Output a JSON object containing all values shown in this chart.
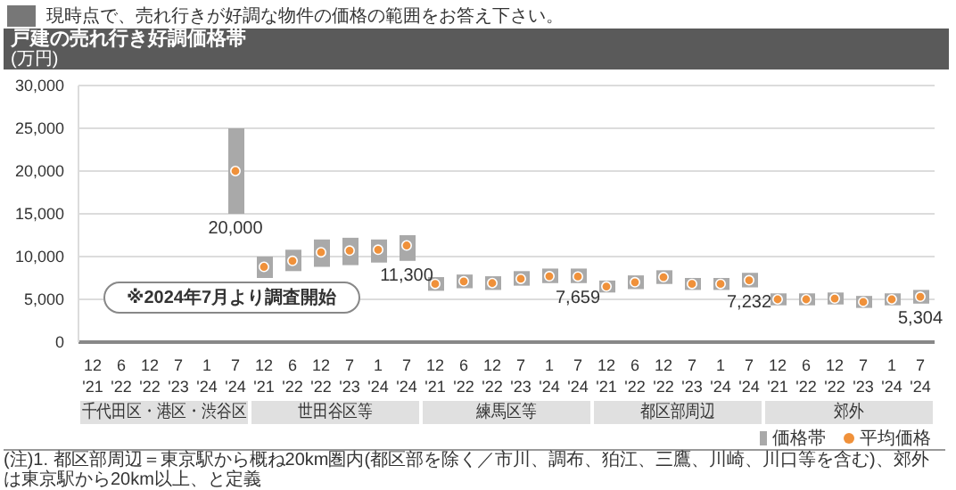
{
  "chart_data": {
    "type": "bar",
    "title": "戸建の売れ行き好調価格帯",
    "subtitle": "現時点で、売れ行きが好調な物件の価格の範囲をお答え下さい。",
    "ylabel": "(万円)",
    "categories": [
      "12 '21",
      "6 '22",
      "12 '22",
      "7 '23",
      "1 '24",
      "7 '24",
      "12 '21",
      "6 '22",
      "12 '22",
      "7 '23",
      "1 '24",
      "7 '24",
      "12 '21",
      "6 '22",
      "12 '22",
      "7 '23",
      "1 '24",
      "7 '24",
      "12 '21",
      "6 '22",
      "12 '22",
      "7 '23",
      "1 '24",
      "7 '24",
      "12 '21",
      "6 '22",
      "12 '22",
      "7 '23",
      "1 '24",
      "7 '24"
    ],
    "series": [
      {
        "name": "価格帯",
        "color": "#a9a9a9",
        "base": [
          null,
          null,
          null,
          null,
          null,
          15000,
          7500,
          8300,
          8800,
          9000,
          9300,
          9500,
          6000,
          6300,
          6100,
          6600,
          6900,
          6900,
          5800,
          6200,
          6800,
          6100,
          6100,
          6400,
          4300,
          4300,
          4400,
          4000,
          4300,
          4500
        ],
        "values": [
          null,
          null,
          null,
          null,
          null,
          10000,
          2500,
          2500,
          3200,
          3200,
          2700,
          3000,
          1600,
          1600,
          1600,
          1700,
          1700,
          1700,
          1400,
          1600,
          1600,
          1400,
          1400,
          1700,
          1400,
          1400,
          1400,
          1400,
          1400,
          1600
        ]
      },
      {
        "name": "平均価格",
        "type": "scatter",
        "color": "#f0913a",
        "values": [
          null,
          null,
          null,
          null,
          null,
          20000,
          8800,
          9500,
          10500,
          10700,
          10800,
          11300,
          6800,
          7100,
          6900,
          7400,
          7700,
          7659,
          6500,
          7000,
          7600,
          6800,
          6800,
          7232,
          5000,
          5000,
          5100,
          4700,
          5000,
          5304
        ],
        "value_labels": [
          null,
          null,
          null,
          null,
          null,
          "20,000",
          null,
          null,
          null,
          null,
          null,
          "11,300",
          null,
          null,
          null,
          null,
          null,
          "7,659",
          null,
          null,
          null,
          null,
          null,
          "7,232",
          null,
          null,
          null,
          null,
          null,
          "5,304"
        ]
      }
    ],
    "ylim": [
      0,
      30000
    ],
    "yticks": [
      0,
      {
        "value": 5000,
        "label": "5,000"
      },
      {
        "value": 10000,
        "label": "10,000"
      },
      {
        "value": 15000,
        "label": "15,000"
      },
      {
        "value": 20000,
        "label": "20,000"
      },
      {
        "value": 25000,
        "label": "25,000"
      },
      {
        "value": 30000,
        "label": "30,000"
      }
    ],
    "grid": "y",
    "legend": "bottom right",
    "marker": "circle",
    "annotations": [
      "千代田区・港区・渋谷区",
      "世田谷区等",
      "練馬区等",
      "都区部周辺",
      "郊外",
      "※2024年7月より調査開始",
      "(注)1. 都区部周辺＝東京駅から概ね20km圏内(都区部を除く／市川、調布、狛江、三鷹、川崎、川口等を含む)、郊外は東京駅から20km以上、と定義"
    ]
  }
}
